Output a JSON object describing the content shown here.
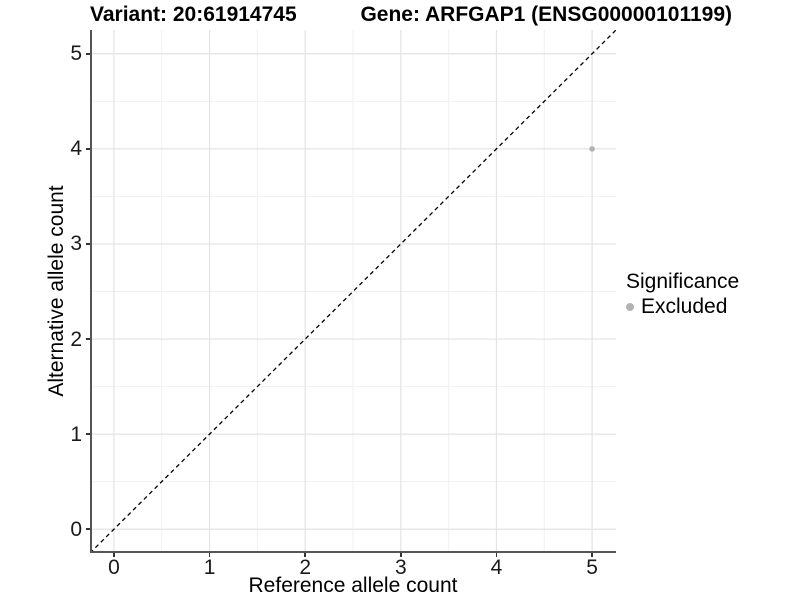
{
  "title": {
    "variant": "Variant: 20:61914745",
    "gene": "Gene: ARFGAP1 (ENSG00000101199)"
  },
  "legend": {
    "title": "Significance",
    "items": [
      {
        "label": "Excluded",
        "color": "#b3b3b3"
      }
    ]
  },
  "colors": {
    "axis_line": "#555555",
    "tick_mark": "#333333",
    "tick_text": "#1a1a1a",
    "grid_major": "#e3e3e3",
    "grid_minor": "#f1f1f1",
    "reference_line": "#000000",
    "point": "#b3b3b3",
    "background": "#ffffff"
  },
  "chart_data": {
    "type": "scatter",
    "title": "Variant: 20:61914745   Gene: ARFGAP1 (ENSG00000101199)",
    "xlabel": "Reference allele count",
    "ylabel": "Alternative allele count",
    "xlim": [
      -0.25,
      5.25
    ],
    "ylim": [
      -0.25,
      5.25
    ],
    "x_ticks": [
      0,
      1,
      2,
      3,
      4,
      5
    ],
    "y_ticks": [
      0,
      1,
      2,
      3,
      4,
      5
    ],
    "grid": {
      "major_step": 1,
      "minor_step": 0.5,
      "enabled": true
    },
    "reference_line": {
      "equation": "y = x",
      "style": "dashed",
      "from": [
        -0.25,
        -0.25
      ],
      "to": [
        5.25,
        5.25
      ]
    },
    "legend_position": "right",
    "series": [
      {
        "name": "Excluded",
        "color": "#b3b3b3",
        "points": [
          {
            "x": 5,
            "y": 4
          }
        ]
      }
    ]
  }
}
